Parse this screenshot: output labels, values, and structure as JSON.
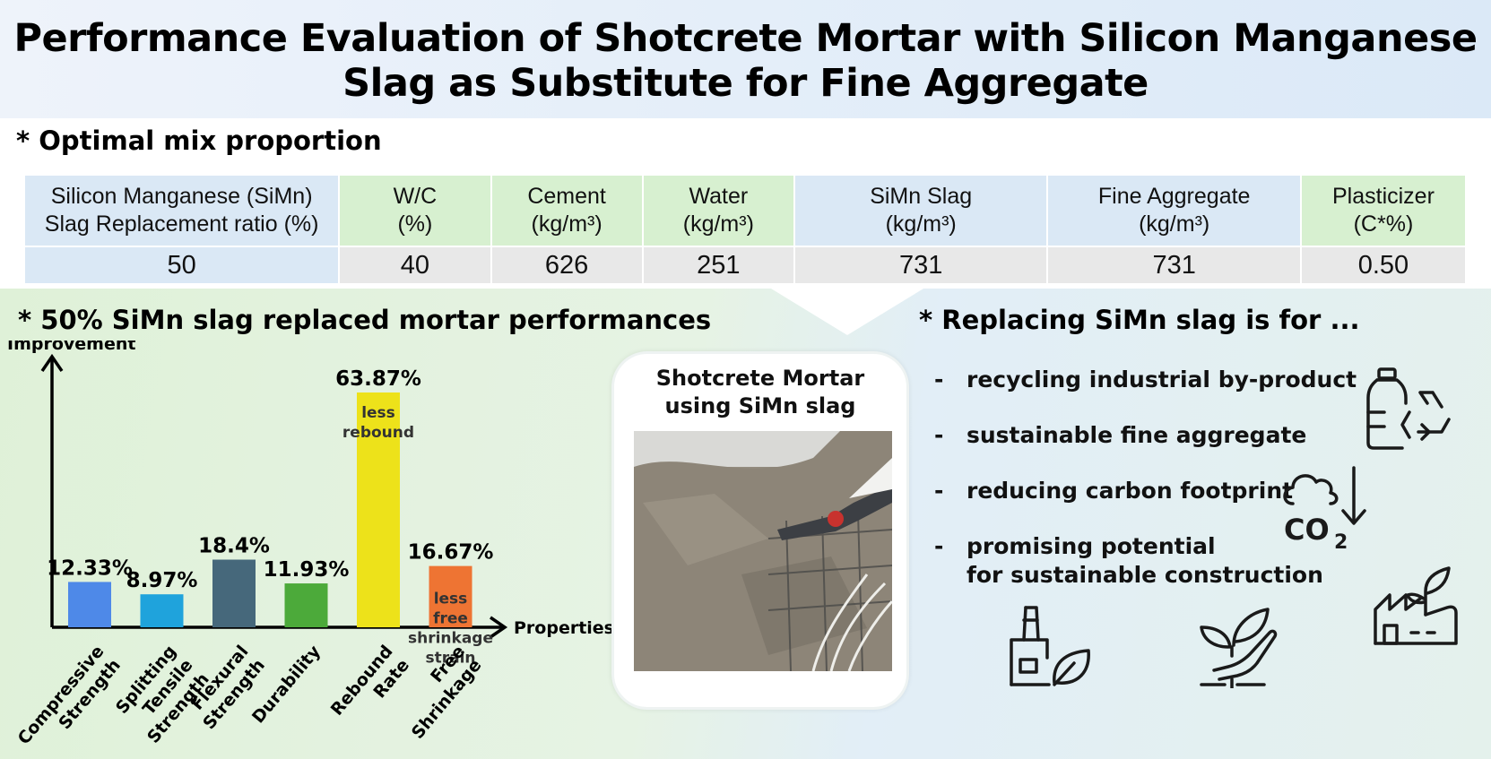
{
  "header": {
    "title_line1": "Performance Evaluation of Shotcrete Mortar with Silicon Manganese",
    "title_line2": "Slag as Substitute for Fine Aggregate"
  },
  "mix": {
    "heading": "* Optimal mix proportion",
    "columns": [
      {
        "line1": "Silicon Manganese (SiMn)",
        "line2": "Slag Replacement ratio (%)",
        "value": "50"
      },
      {
        "line1": "W/C",
        "line2": "(%)",
        "value": "40"
      },
      {
        "line1": "Cement",
        "line2": "(kg/m³)",
        "value": "626"
      },
      {
        "line1": "Water",
        "line2": "(kg/m³)",
        "value": "251"
      },
      {
        "line1": "SiMn Slag",
        "line2": "(kg/m³)",
        "value": "731"
      },
      {
        "line1": "Fine Aggregate",
        "line2": "(kg/m³)",
        "value": "731"
      },
      {
        "line1": "Plasticizer",
        "line2": "(C*%)",
        "value": "0.50"
      }
    ]
  },
  "performance": {
    "heading": "* 50% SiMn slag replaced mortar performances"
  },
  "chart_data": {
    "type": "bar",
    "ylabel": "Improvement",
    "xlabel": "Properties",
    "categories": [
      "Compressive Strength",
      "Splitting Tensile Strength",
      "Flexural Strength",
      "Durability",
      "Rebound Rate",
      "Free Shrinkage"
    ],
    "values": [
      12.33,
      8.97,
      18.4,
      11.93,
      63.87,
      16.67
    ],
    "value_labels": [
      "12.33%",
      "8.97%",
      "18.4%",
      "11.93%",
      "63.87%",
      "16.67%"
    ],
    "category_lines": [
      [
        "Compressive",
        "Strength"
      ],
      [
        "Splitting",
        "Tensile",
        "Strength"
      ],
      [
        "Flexural",
        "Strength"
      ],
      [
        "Durability"
      ],
      [
        "Rebound",
        "Rate"
      ],
      [
        "Free",
        "Shrinkage"
      ]
    ],
    "bar_notes": [
      null,
      null,
      null,
      null,
      [
        "less",
        "rebound"
      ],
      [
        "less",
        "free",
        "shrinkage",
        "strain"
      ]
    ],
    "colors": [
      "#4e89e8",
      "#1fa3dc",
      "#46687b",
      "#4caa3a",
      "#ede21a",
      "#ee7433"
    ],
    "grid": false,
    "legend": "none"
  },
  "photo": {
    "caption_line1": "Shotcrete Mortar",
    "caption_line2": "using SiMn slag"
  },
  "benefits": {
    "heading": "* Replacing SiMn slag is for ...",
    "dash": "-",
    "items": [
      "recycling industrial by-product",
      "sustainable fine aggregate",
      "reducing carbon footprint",
      "promising potential",
      "for sustainable construction"
    ]
  },
  "icons": {
    "co2_text": "CO",
    "co2_sub": "2",
    "names": [
      "recycle-bottle-icon",
      "co2-reduction-icon",
      "green-factory-icon",
      "factory-leaf-icon",
      "hand-plant-icon"
    ]
  }
}
